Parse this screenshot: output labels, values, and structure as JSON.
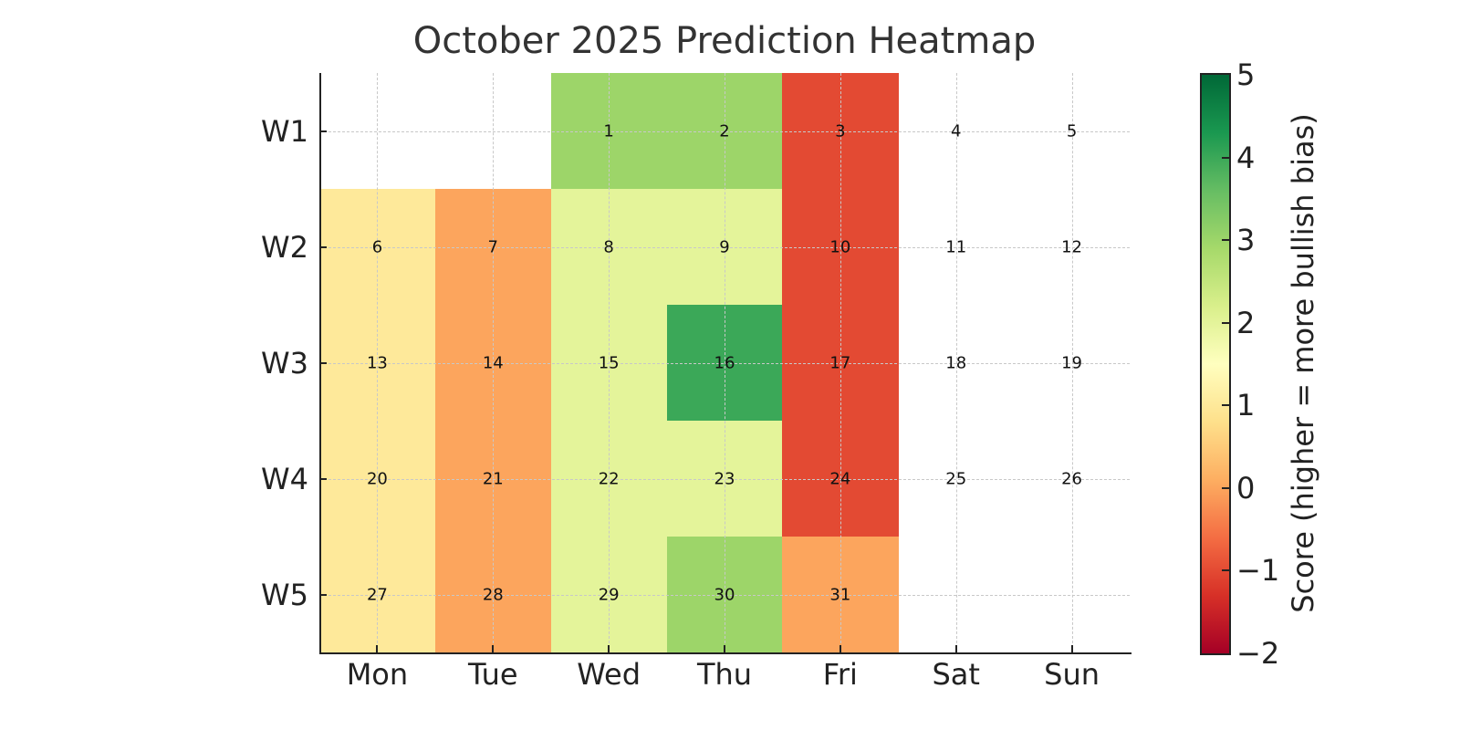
{
  "chart_data": {
    "type": "heatmap",
    "title": "October 2025 Prediction Heatmap",
    "xlabel": "",
    "ylabel": "",
    "x_categories": [
      "Mon",
      "Tue",
      "Wed",
      "Thu",
      "Fri",
      "Sat",
      "Sun"
    ],
    "y_categories": [
      "W1",
      "W2",
      "W3",
      "W4",
      "W5"
    ],
    "day_numbers": [
      [
        null,
        null,
        1,
        2,
        3,
        4,
        5
      ],
      [
        6,
        7,
        8,
        9,
        10,
        11,
        12
      ],
      [
        13,
        14,
        15,
        16,
        17,
        18,
        19
      ],
      [
        20,
        21,
        22,
        23,
        24,
        25,
        26
      ],
      [
        27,
        28,
        29,
        30,
        31,
        null,
        null
      ]
    ],
    "values": [
      [
        null,
        null,
        3,
        3,
        -1,
        null,
        null
      ],
      [
        1,
        0,
        2,
        2,
        -1,
        null,
        null
      ],
      [
        1,
        0,
        2,
        4,
        -1,
        null,
        null
      ],
      [
        1,
        0,
        2,
        2,
        -1,
        null,
        null
      ],
      [
        1,
        0,
        2,
        3,
        0,
        null,
        null
      ]
    ],
    "colormap": "RdYlGn",
    "vmin": -2,
    "vmax": 5,
    "colorbar": {
      "label": "Score (higher = more bullish bias)",
      "ticks": [
        "5",
        "4",
        "3",
        "2",
        "1",
        "0",
        "−1",
        "−2"
      ]
    },
    "grid": true
  }
}
